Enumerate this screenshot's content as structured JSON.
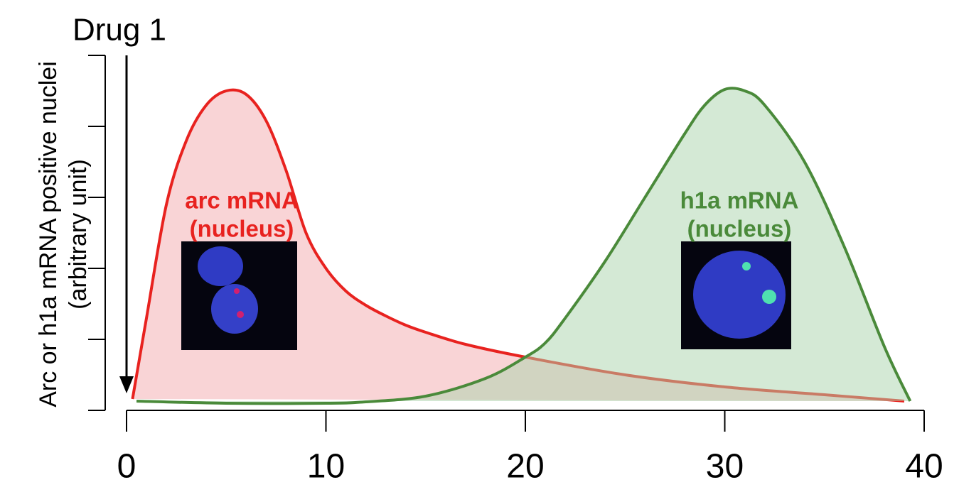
{
  "chart_data": {
    "type": "area",
    "annotation": "Drug 1",
    "ylabel": "Arc or h1a mRNA positive nuclei",
    "ylabel_unit": "(arbitrary unit)",
    "xlim": [
      0,
      40
    ],
    "xticks": [
      0,
      10,
      20,
      30,
      40
    ],
    "ylim": [
      0,
      5
    ],
    "yticks": [
      0,
      1,
      2,
      3,
      4,
      5
    ],
    "series": [
      {
        "name": "arc mRNA",
        "subtitle": "(nucleus)",
        "color": "#e8221f",
        "fill": "#f4a9ad",
        "x": [
          0.3,
          1,
          2,
          3,
          4,
          5,
          6,
          7,
          8,
          9,
          10,
          11,
          12,
          13,
          14,
          15,
          17,
          20,
          25,
          30,
          35,
          39
        ],
        "values": [
          0.16,
          1.3,
          2.9,
          3.8,
          4.3,
          4.5,
          4.45,
          4.08,
          3.38,
          2.5,
          2.0,
          1.68,
          1.48,
          1.33,
          1.2,
          1.1,
          0.93,
          0.75,
          0.5,
          0.33,
          0.22,
          0.13
        ]
      },
      {
        "name": "h1a mRNA",
        "subtitle": "(nucleus)",
        "color": "#4a8a3a",
        "fill": "#a9d4ab",
        "x": [
          0.5,
          5,
          10,
          12,
          15,
          18,
          20,
          21,
          22,
          24,
          26,
          28,
          29,
          30,
          31,
          32,
          34,
          36,
          38,
          39.3
        ],
        "values": [
          0.13,
          0.1,
          0.1,
          0.12,
          0.2,
          0.45,
          0.75,
          0.95,
          1.3,
          2.1,
          3.0,
          3.9,
          4.3,
          4.52,
          4.5,
          4.3,
          3.5,
          2.3,
          0.9,
          0.13
        ]
      }
    ]
  }
}
